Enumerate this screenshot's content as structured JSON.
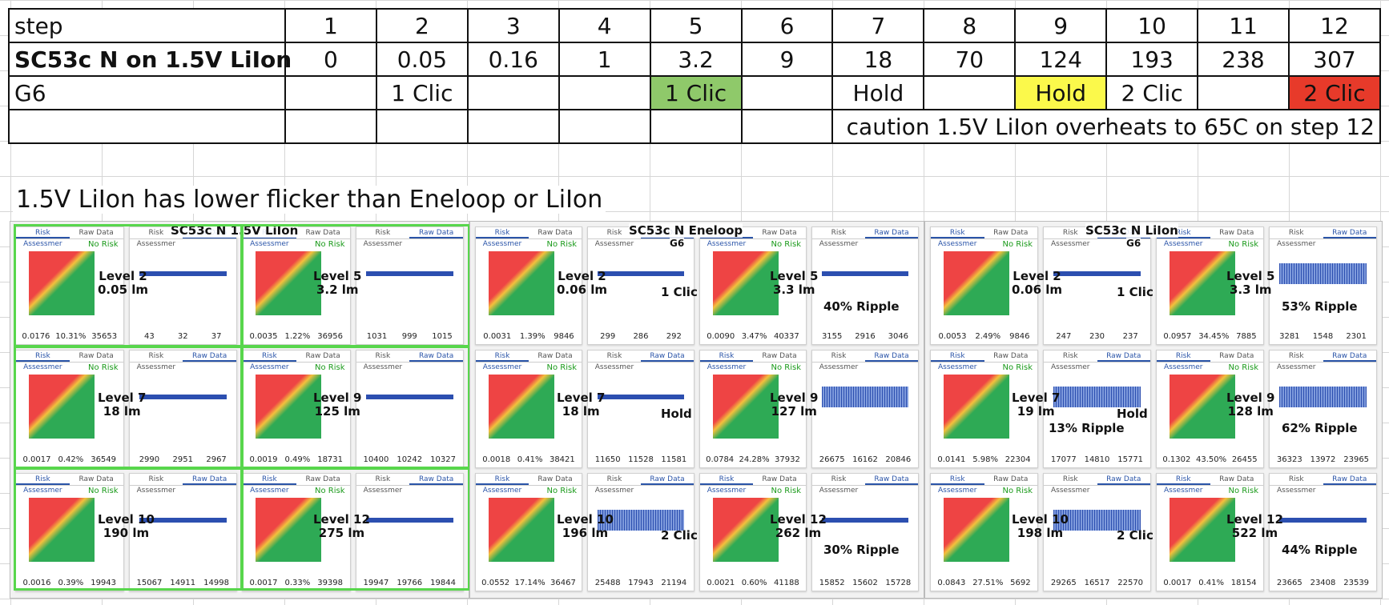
{
  "table": {
    "step_label": "step",
    "steps": [
      "1",
      "2",
      "3",
      "4",
      "5",
      "6",
      "7",
      "8",
      "9",
      "10",
      "11",
      "12"
    ],
    "model_label": "SC53c N on 1.5V LiIon",
    "outputs": [
      "0",
      "0.05",
      "0.16",
      "1",
      "3.2",
      "9",
      "18",
      "70",
      "124",
      "193",
      "238",
      "307"
    ],
    "g6_label": "G6",
    "g6": [
      "",
      "1 Clic",
      "",
      "",
      "1 Clic",
      "",
      "Hold",
      "",
      "Hold",
      "2 Clic",
      "",
      "2 Clic"
    ],
    "caution": "caution 1.5V LiIon overheats to 65C on step 12",
    "colors": {
      "green": "#8fc96a",
      "yellow": "#fbf94b",
      "red": "#e73a2a"
    }
  },
  "note": "1.5V LiIon has lower flicker than Eneloop or LiIon",
  "panels": [
    {
      "title": "SC53c N 1.5V LiIon",
      "subtitle": "",
      "rows": [
        {
          "a": "Level 2\n0.05 lm",
          "b": "Level 5\n3.2 lm",
          "mid": "",
          "ripple": "",
          "s1": [
            "0.0176",
            "10.31%",
            "35653"
          ],
          "s2": [
            "43",
            "32",
            "37"
          ],
          "s3": [
            "0.0035",
            "1.22%",
            "36956"
          ],
          "s4": [
            "1031",
            "999",
            "1015"
          ]
        },
        {
          "a": "Level 7\n18 lm",
          "b": "Level 9\n125 lm",
          "mid": "",
          "ripple": "",
          "s1": [
            "0.0017",
            "0.42%",
            "36549"
          ],
          "s2": [
            "2990",
            "2951",
            "2967"
          ],
          "s3": [
            "0.0019",
            "0.49%",
            "18731"
          ],
          "s4": [
            "10400",
            "10242",
            "10327"
          ]
        },
        {
          "a": "Level 10\n190 lm",
          "b": "Level 12\n275 lm",
          "mid": "",
          "ripple": "",
          "s1": [
            "0.0016",
            "0.39%",
            "19943"
          ],
          "s2": [
            "15067",
            "14911",
            "14998"
          ],
          "s3": [
            "0.0017",
            "0.33%",
            "39398"
          ],
          "s4": [
            "19947",
            "19766",
            "19844"
          ]
        }
      ]
    },
    {
      "title": "SC53c N Eneloop",
      "subtitle": "G6",
      "rows": [
        {
          "a": "Level 2\n0.06 lm",
          "b": "Level 5\n3.3 lm",
          "mid": "1 Clic",
          "ripple": "40% Ripple",
          "s1": [
            "0.0031",
            "1.39%",
            "9846"
          ],
          "s2": [
            "299",
            "286",
            "292"
          ],
          "s3": [
            "0.0090",
            "3.47%",
            "40337"
          ],
          "s4": [
            "3155",
            "2916",
            "3046"
          ]
        },
        {
          "a": "Level 7\n18 lm",
          "b": "Level 9\n127 lm",
          "mid": "Hold",
          "ripple": "",
          "s1": [
            "0.0018",
            "0.41%",
            "38421"
          ],
          "s2": [
            "11650",
            "11528",
            "11581"
          ],
          "s3": [
            "0.0784",
            "24.28%",
            "37932"
          ],
          "s4": [
            "26675",
            "16162",
            "20846"
          ]
        },
        {
          "a": "Level 10\n196 lm",
          "b": "Level 12\n262 lm",
          "mid": "2 Clic",
          "ripple": "30% Ripple",
          "s1": [
            "0.0552",
            "17.14%",
            "36467"
          ],
          "s2": [
            "25488",
            "17943",
            "21194"
          ],
          "s3": [
            "0.0021",
            "0.60%",
            "41188"
          ],
          "s4": [
            "15852",
            "15602",
            "15728"
          ]
        }
      ]
    },
    {
      "title": "SC53c N LiIon",
      "subtitle": "G6",
      "rows": [
        {
          "a": "Level 2\n0.06 lm",
          "b": "Level 5\n3.3 lm",
          "mid": "1 Clic",
          "ripple": "53% Ripple",
          "s1": [
            "0.0053",
            "2.49%",
            "9846"
          ],
          "s2": [
            "247",
            "230",
            "237"
          ],
          "s3": [
            "0.0957",
            "34.45%",
            "7885"
          ],
          "s4": [
            "3281",
            "1548",
            "2301"
          ]
        },
        {
          "a": "Level 7\n19 lm",
          "b": "Level 9\n128 lm",
          "mid": "Hold",
          "ripple": "13% Ripple",
          "ripple2": "62% Ripple",
          "s1": [
            "0.0141",
            "5.98%",
            "22304"
          ],
          "s2": [
            "17077",
            "14810",
            "15771"
          ],
          "s3": [
            "0.1302",
            "43.50%",
            "26455"
          ],
          "s4": [
            "36323",
            "13972",
            "23965"
          ]
        },
        {
          "a": "Level 10\n198 lm",
          "b": "Level 12\n522 lm",
          "mid": "2 Clic",
          "ripple": "44% Ripple",
          "s1": [
            "0.0843",
            "27.51%",
            "5692"
          ],
          "s2": [
            "29265",
            "16517",
            "22570"
          ],
          "s3": [
            "0.0017",
            "0.41%",
            "18154"
          ],
          "s4": [
            "23665",
            "23408",
            "23539"
          ]
        }
      ]
    }
  ],
  "ui": {
    "tab_risk": "Risk Assessmer",
    "tab_raw": "Raw Data",
    "no_risk": "No Risk"
  }
}
